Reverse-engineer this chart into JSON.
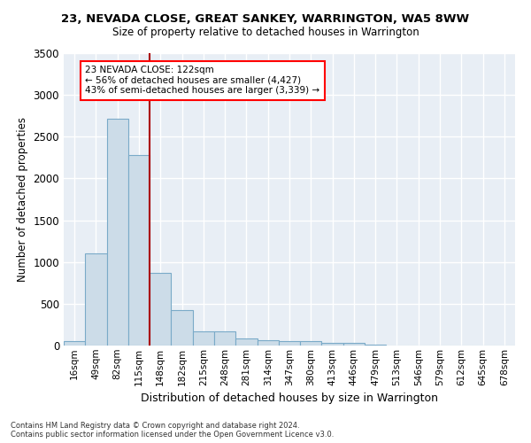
{
  "title": "23, NEVADA CLOSE, GREAT SANKEY, WARRINGTON, WA5 8WW",
  "subtitle": "Size of property relative to detached houses in Warrington",
  "xlabel": "Distribution of detached houses by size in Warrington",
  "ylabel": "Number of detached properties",
  "bar_color": "#ccdce8",
  "bar_edge_color": "#7aaac8",
  "background_color": "#e8eef5",
  "grid_color": "#ffffff",
  "bin_labels": [
    "16sqm",
    "49sqm",
    "82sqm",
    "115sqm",
    "148sqm",
    "182sqm",
    "215sqm",
    "248sqm",
    "281sqm",
    "314sqm",
    "347sqm",
    "380sqm",
    "413sqm",
    "446sqm",
    "479sqm",
    "513sqm",
    "546sqm",
    "579sqm",
    "612sqm",
    "645sqm",
    "678sqm"
  ],
  "values": [
    50,
    1100,
    2720,
    2280,
    870,
    420,
    165,
    165,
    85,
    60,
    50,
    50,
    32,
    28,
    8,
    5,
    3,
    2,
    1,
    1,
    1
  ],
  "ylim": [
    0,
    3500
  ],
  "yticks": [
    0,
    500,
    1000,
    1500,
    2000,
    2500,
    3000,
    3500
  ],
  "red_line_bin_index": 3,
  "annotation_title": "23 NEVADA CLOSE: 122sqm",
  "annotation_line1": "← 56% of detached houses are smaller (4,427)",
  "annotation_line2": "43% of semi-detached houses are larger (3,339) →",
  "footnote1": "Contains HM Land Registry data © Crown copyright and database right 2024.",
  "footnote2": "Contains public sector information licensed under the Open Government Licence v3.0."
}
